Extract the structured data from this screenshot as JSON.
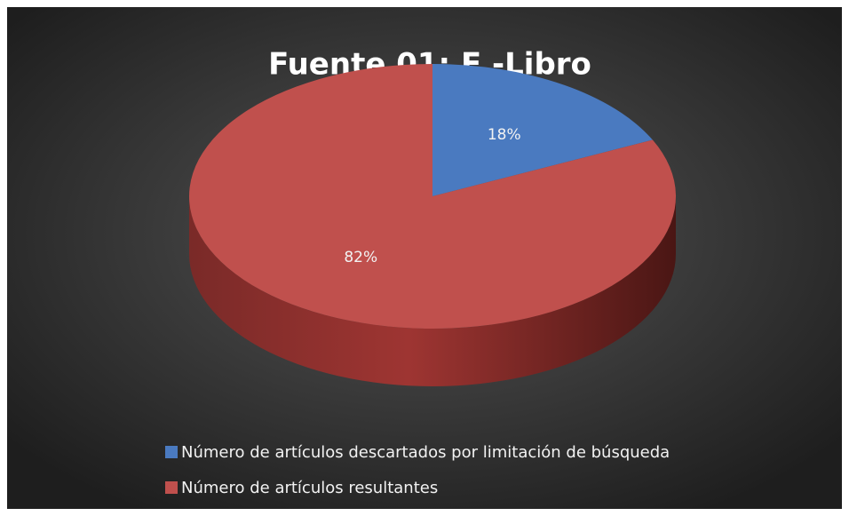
{
  "chart_data": {
    "type": "pie",
    "title": "Fuente 01: E -Libro",
    "categories": [
      "Número de artículos descartados por limitación de búsqueda",
      "Número de artículos resultantes"
    ],
    "values": [
      18,
      82
    ],
    "value_labels": [
      "18%",
      "82%"
    ],
    "colors": [
      "#4a7ac0",
      "#c0504d"
    ],
    "legend": "bottom"
  }
}
